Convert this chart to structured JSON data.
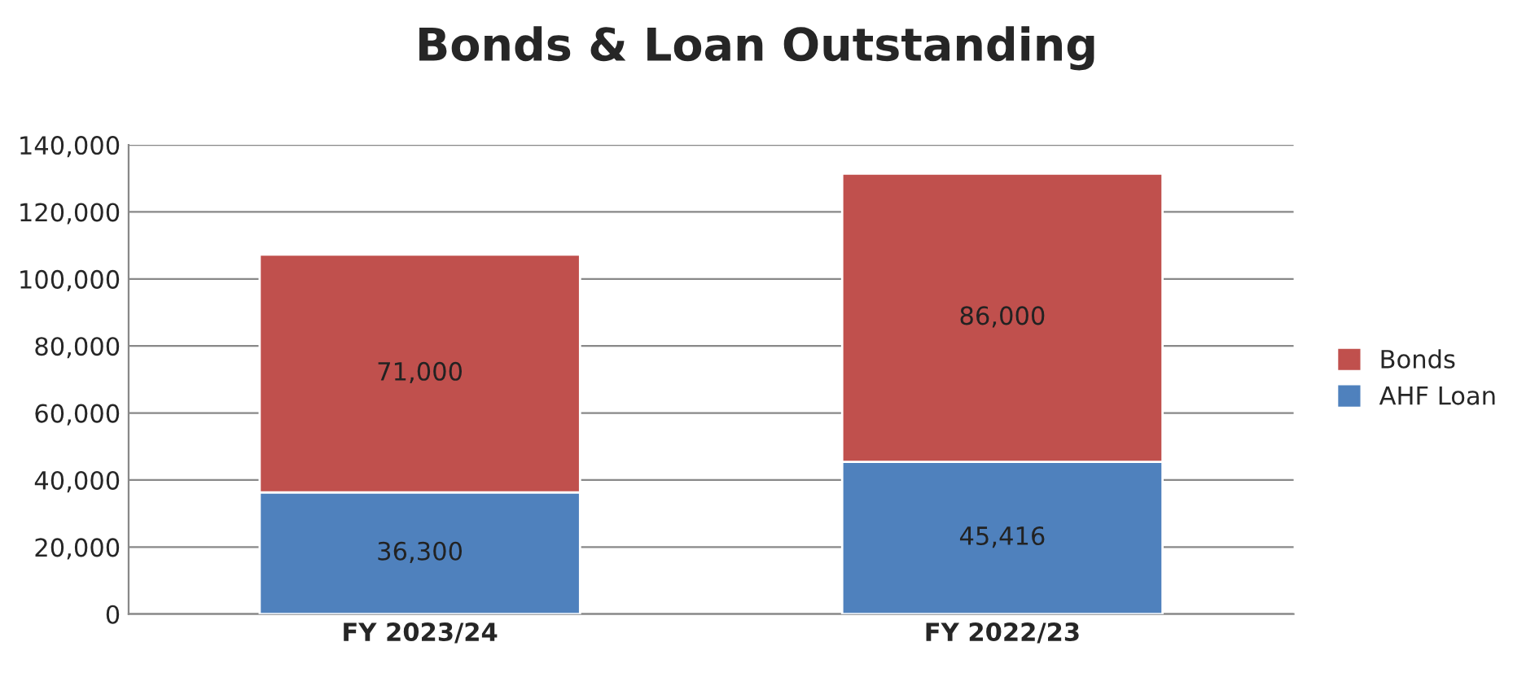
{
  "chart_data": {
    "type": "bar",
    "title": "Bonds & Loan Outstanding",
    "stacked": true,
    "categories": [
      "FY 2023/24",
      "FY 2022/23"
    ],
    "series": [
      {
        "name": "AHF Loan",
        "color": "#4f81bd",
        "values": [
          36300,
          45416
        ],
        "value_labels": [
          "36,300",
          "45,416"
        ]
      },
      {
        "name": "Bonds",
        "color": "#c0504d",
        "values": [
          71000,
          86000
        ],
        "value_labels": [
          "71,000",
          "86,000"
        ]
      }
    ],
    "ylim": [
      0,
      140000
    ],
    "yticks": [
      {
        "value": 0,
        "label": "0"
      },
      {
        "value": 20000,
        "label": "20,000"
      },
      {
        "value": 40000,
        "label": "40,000"
      },
      {
        "value": 60000,
        "label": "60,000"
      },
      {
        "value": 80000,
        "label": "80,000"
      },
      {
        "value": 100000,
        "label": "100,000"
      },
      {
        "value": 120000,
        "label": "120,000"
      },
      {
        "value": 140000,
        "label": "140,000"
      }
    ],
    "grid": "y",
    "legend": "right"
  }
}
